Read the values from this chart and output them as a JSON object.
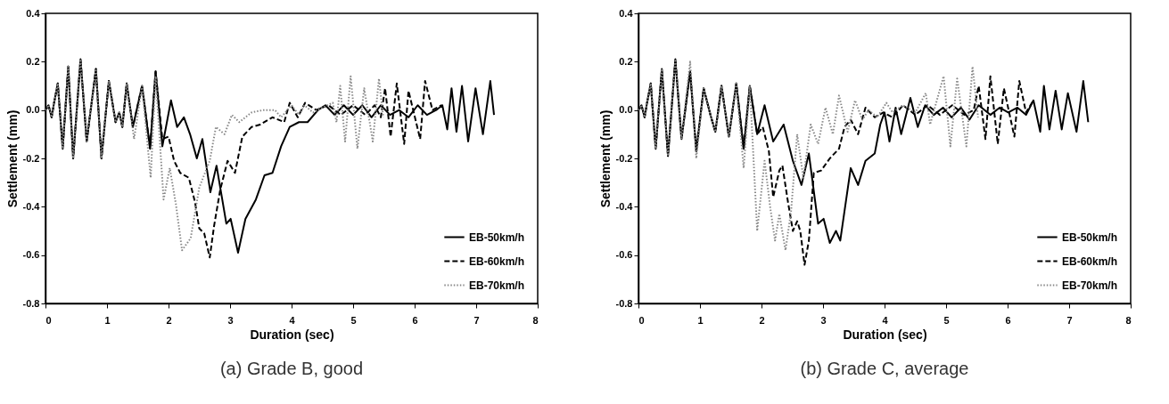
{
  "chart_data": [
    {
      "type": "line",
      "title": "(a) Grade B, good",
      "xlabel": "Duration  (sec)",
      "ylabel": "Settlement (mm)",
      "xlim": [
        0,
        8
      ],
      "ylim": [
        -0.8,
        0.4
      ],
      "xticks": [
        0,
        1,
        2,
        3,
        4,
        5,
        6,
        7,
        8
      ],
      "yticks": [
        {
          "value": -0.8,
          "label": "-0.8"
        },
        {
          "value": -0.6,
          "label": "-0.6"
        },
        {
          "value": -0.4,
          "label": "-0.4"
        },
        {
          "value": -0.2,
          "label": "-0.2"
        },
        {
          "value": 0,
          "label": "0.0"
        },
        {
          "value": 0.2,
          "label": "0.2"
        },
        {
          "value": 0.4,
          "label": "0.4"
        }
      ],
      "legend": "bottom right",
      "series": [
        {
          "name": "EB-50km/h",
          "color": "#000000",
          "line_style": "solid",
          "x": [
            0,
            0.05,
            0.1,
            0.14,
            0.2,
            0.28,
            0.37,
            0.45,
            0.57,
            0.67,
            0.82,
            0.91,
            1.03,
            1.14,
            1.2,
            1.25,
            1.32,
            1.42,
            1.57,
            1.7,
            1.79,
            1.9,
            2.04,
            2.14,
            2.25,
            2.35,
            2.46,
            2.55,
            2.68,
            2.78,
            2.94,
            3.01,
            3.13,
            3.25,
            3.42,
            3.56,
            3.69,
            3.83,
            3.97,
            4.12,
            4.26,
            4.43,
            4.55,
            4.7,
            4.85,
            5,
            5.15,
            5.3,
            5.45,
            5.6,
            5.75,
            5.9,
            6.05,
            6.2,
            6.35,
            6.45,
            6.53,
            6.6,
            6.68,
            6.77,
            6.87,
            6.99,
            7.11,
            7.23,
            7.29
          ],
          "values": [
            0,
            0.02,
            -0.03,
            0.03,
            0.11,
            -0.16,
            0.18,
            -0.2,
            0.21,
            -0.13,
            0.17,
            -0.2,
            0.12,
            -0.05,
            -0.01,
            -0.07,
            0.11,
            -0.07,
            0.1,
            -0.16,
            0.16,
            -0.15,
            0.04,
            -0.07,
            -0.03,
            -0.1,
            -0.2,
            -0.12,
            -0.34,
            -0.23,
            -0.47,
            -0.45,
            -0.59,
            -0.45,
            -0.37,
            -0.27,
            -0.26,
            -0.15,
            -0.07,
            -0.05,
            -0.05,
            0,
            0.02,
            -0.02,
            0.02,
            -0.02,
            0.02,
            -0.03,
            0.02,
            -0.02,
            0,
            -0.03,
            0.02,
            -0.02,
            0,
            0.02,
            -0.08,
            0.09,
            -0.09,
            0.1,
            -0.13,
            0.09,
            -0.1,
            0.12,
            -0.02
          ]
        },
        {
          "name": "EB-60km/h",
          "color": "#000000",
          "line_style": "dashed",
          "x": [
            0,
            0.05,
            0.1,
            0.14,
            0.2,
            0.28,
            0.37,
            0.45,
            0.57,
            0.67,
            0.82,
            0.91,
            1.03,
            1.14,
            1.2,
            1.25,
            1.32,
            1.42,
            1.57,
            1.7,
            1.79,
            1.9,
            2,
            2.09,
            2.19,
            2.33,
            2.43,
            2.5,
            2.58,
            2.67,
            2.74,
            2.84,
            2.96,
            3.08,
            3.2,
            3.35,
            3.49,
            3.69,
            3.88,
            3.97,
            4.1,
            4.22,
            4.4,
            4.6,
            4.8,
            5,
            5.2,
            5.35,
            5.45,
            5.52,
            5.61,
            5.71,
            5.83,
            5.9,
            6.09,
            6.17,
            6.29,
            6.44
          ],
          "values": [
            0,
            0.02,
            -0.03,
            0.03,
            0.11,
            -0.16,
            0.18,
            -0.2,
            0.21,
            -0.13,
            0.17,
            -0.2,
            0.12,
            -0.05,
            -0.01,
            -0.07,
            0.11,
            -0.07,
            0.1,
            -0.16,
            0.16,
            -0.12,
            -0.11,
            -0.21,
            -0.26,
            -0.28,
            -0.38,
            -0.49,
            -0.51,
            -0.61,
            -0.48,
            -0.33,
            -0.21,
            -0.26,
            -0.11,
            -0.07,
            -0.06,
            -0.03,
            -0.05,
            0.03,
            -0.03,
            0.03,
            0,
            0.02,
            -0.02,
            0.02,
            -0.02,
            0.02,
            -0.03,
            0.09,
            -0.11,
            0.11,
            -0.14,
            0.08,
            -0.12,
            0.12,
            0,
            0.02
          ]
        },
        {
          "name": "EB-70km/h",
          "color": "#888888",
          "line_style": "dotted",
          "x": [
            0,
            0.05,
            0.1,
            0.14,
            0.2,
            0.28,
            0.37,
            0.45,
            0.57,
            0.67,
            0.82,
            0.91,
            1.03,
            1.14,
            1.2,
            1.25,
            1.32,
            1.44,
            1.57,
            1.71,
            1.79,
            1.92,
            2.02,
            2.12,
            2.22,
            2.36,
            2.5,
            2.67,
            2.77,
            2.91,
            3.03,
            3.15,
            3.35,
            3.54,
            3.73,
            3.83,
            4,
            4.12,
            4.21,
            4.35,
            4.5,
            4.67,
            4.73,
            4.79,
            4.87,
            4.96,
            5.07,
            5.18,
            5.32,
            5.42,
            5.49
          ],
          "values": [
            0,
            0.02,
            -0.03,
            0.03,
            0.11,
            -0.16,
            0.18,
            -0.2,
            0.21,
            -0.13,
            0.17,
            -0.2,
            0.12,
            -0.05,
            -0.01,
            -0.07,
            0.11,
            -0.12,
            0.1,
            -0.28,
            0.14,
            -0.37,
            -0.24,
            -0.39,
            -0.58,
            -0.53,
            -0.32,
            -0.21,
            -0.07,
            -0.1,
            -0.02,
            -0.05,
            -0.01,
            0,
            0,
            -0.03,
            0.02,
            -0.02,
            0.02,
            -0.01,
            0.01,
            0.03,
            -0.05,
            0.1,
            -0.13,
            0.14,
            -0.16,
            0.09,
            -0.13,
            0.13,
            -0.03
          ]
        }
      ]
    },
    {
      "type": "line",
      "title": "(b) Grade C, average",
      "xlabel": "Duration  (sec)",
      "ylabel": "Settlement (mm)",
      "xlim": [
        0,
        8
      ],
      "ylim": [
        -0.8,
        0.4
      ],
      "xticks": [
        0,
        1,
        2,
        3,
        4,
        5,
        6,
        7,
        8
      ],
      "yticks": [
        {
          "value": -0.8,
          "label": "-0.8"
        },
        {
          "value": -0.6,
          "label": "-0.6"
        },
        {
          "value": -0.4,
          "label": "-0.4"
        },
        {
          "value": -0.2,
          "label": "-0.2"
        },
        {
          "value": 0,
          "label": "0.0"
        },
        {
          "value": 0.2,
          "label": "0.2"
        },
        {
          "value": 0.4,
          "label": "0.4"
        }
      ],
      "legend": "bottom right",
      "series": [
        {
          "name": "EB-50km/h",
          "color": "#000000",
          "line_style": "solid",
          "x": [
            0,
            0.05,
            0.1,
            0.14,
            0.2,
            0.28,
            0.38,
            0.48,
            0.6,
            0.7,
            0.84,
            0.94,
            1.06,
            1.17,
            1.25,
            1.35,
            1.47,
            1.59,
            1.71,
            1.81,
            1.93,
            2.05,
            2.19,
            2.36,
            2.51,
            2.65,
            2.77,
            2.92,
            3.01,
            3.11,
            3.21,
            3.28,
            3.45,
            3.57,
            3.69,
            3.84,
            3.93,
            4,
            4.08,
            4.18,
            4.27,
            4.42,
            4.54,
            4.66,
            4.8,
            4.95,
            5.09,
            5.24,
            5.38,
            5.53,
            5.72,
            5.87,
            6.01,
            6.16,
            6.3,
            6.42,
            6.53,
            6.59,
            6.68,
            6.78,
            6.88,
            6.98,
            7.12,
            7.23,
            7.31
          ],
          "values": [
            0,
            0.02,
            -0.03,
            0.03,
            0.11,
            -0.16,
            0.17,
            -0.19,
            0.21,
            -0.12,
            0.16,
            -0.17,
            0.09,
            -0.02,
            -0.09,
            0.1,
            -0.11,
            0.11,
            -0.16,
            0.1,
            -0.1,
            0.02,
            -0.13,
            -0.06,
            -0.21,
            -0.31,
            -0.18,
            -0.47,
            -0.45,
            -0.55,
            -0.5,
            -0.54,
            -0.24,
            -0.31,
            -0.21,
            -0.18,
            -0.06,
            -0.01,
            -0.13,
            0.01,
            -0.1,
            0.05,
            -0.07,
            0.02,
            -0.02,
            0.01,
            -0.03,
            0.01,
            -0.04,
            0.02,
            -0.02,
            0.01,
            -0.01,
            0.01,
            -0.02,
            0.04,
            -0.09,
            0.1,
            -0.08,
            0.08,
            -0.08,
            0.07,
            -0.09,
            0.12,
            -0.05
          ]
        },
        {
          "name": "EB-60km/h",
          "color": "#000000",
          "line_style": "dashed",
          "x": [
            0,
            0.05,
            0.1,
            0.14,
            0.2,
            0.28,
            0.38,
            0.48,
            0.6,
            0.7,
            0.84,
            0.94,
            1.06,
            1.17,
            1.25,
            1.35,
            1.47,
            1.59,
            1.71,
            1.81,
            1.93,
            2.02,
            2.12,
            2.19,
            2.29,
            2.34,
            2.43,
            2.51,
            2.58,
            2.63,
            2.7,
            2.77,
            2.85,
            2.97,
            3.11,
            3.26,
            3.35,
            3.45,
            3.57,
            3.69,
            3.84,
            3.98,
            4.13,
            4.3,
            4.5,
            4.7,
            4.9,
            5.1,
            5.3,
            5.45,
            5.53,
            5.64,
            5.72,
            5.84,
            5.94,
            6.11,
            6.19,
            6.3,
            6.42
          ],
          "values": [
            0,
            0.02,
            -0.03,
            0.03,
            0.11,
            -0.16,
            0.17,
            -0.19,
            0.21,
            -0.12,
            0.16,
            -0.17,
            0.09,
            -0.02,
            -0.09,
            0.1,
            -0.11,
            0.11,
            -0.16,
            0.1,
            -0.1,
            -0.07,
            -0.17,
            -0.36,
            -0.25,
            -0.23,
            -0.38,
            -0.5,
            -0.46,
            -0.5,
            -0.64,
            -0.54,
            -0.26,
            -0.25,
            -0.2,
            -0.16,
            -0.07,
            -0.04,
            -0.1,
            0.01,
            -0.03,
            -0.01,
            -0.03,
            0.02,
            -0.02,
            0.02,
            -0.02,
            0.02,
            -0.02,
            0,
            0.1,
            -0.12,
            0.14,
            -0.14,
            0.09,
            -0.11,
            0.12,
            -0.01,
            0.04
          ]
        },
        {
          "name": "EB-70km/h",
          "color": "#888888",
          "line_style": "dotted",
          "x": [
            0,
            0.05,
            0.1,
            0.14,
            0.2,
            0.28,
            0.38,
            0.48,
            0.6,
            0.7,
            0.84,
            0.94,
            1.06,
            1.17,
            1.25,
            1.35,
            1.47,
            1.59,
            1.71,
            1.81,
            1.93,
            2.05,
            2.14,
            2.22,
            2.29,
            2.39,
            2.48,
            2.58,
            2.68,
            2.8,
            2.92,
            3.04,
            3.16,
            3.26,
            3.4,
            3.52,
            3.64,
            3.74,
            3.88,
            4.03,
            4.13,
            4.3,
            4.5,
            4.67,
            4.74,
            4.96,
            5.07,
            5.18,
            5.33,
            5.43,
            5.52
          ],
          "values": [
            0,
            0.02,
            -0.03,
            0.03,
            0.11,
            -0.16,
            0.17,
            -0.19,
            0.21,
            -0.12,
            0.2,
            -0.2,
            0.09,
            -0.02,
            -0.09,
            0.1,
            -0.11,
            0.11,
            -0.24,
            0.1,
            -0.5,
            -0.21,
            -0.4,
            -0.54,
            -0.43,
            -0.58,
            -0.42,
            -0.1,
            -0.28,
            -0.06,
            -0.14,
            0.01,
            -0.1,
            0.06,
            -0.09,
            0.04,
            -0.04,
            0,
            -0.03,
            0.03,
            -0.01,
            0.02,
            -0.01,
            0.07,
            -0.06,
            0.14,
            -0.15,
            0.13,
            -0.15,
            0.18,
            -0.03
          ]
        }
      ]
    }
  ]
}
